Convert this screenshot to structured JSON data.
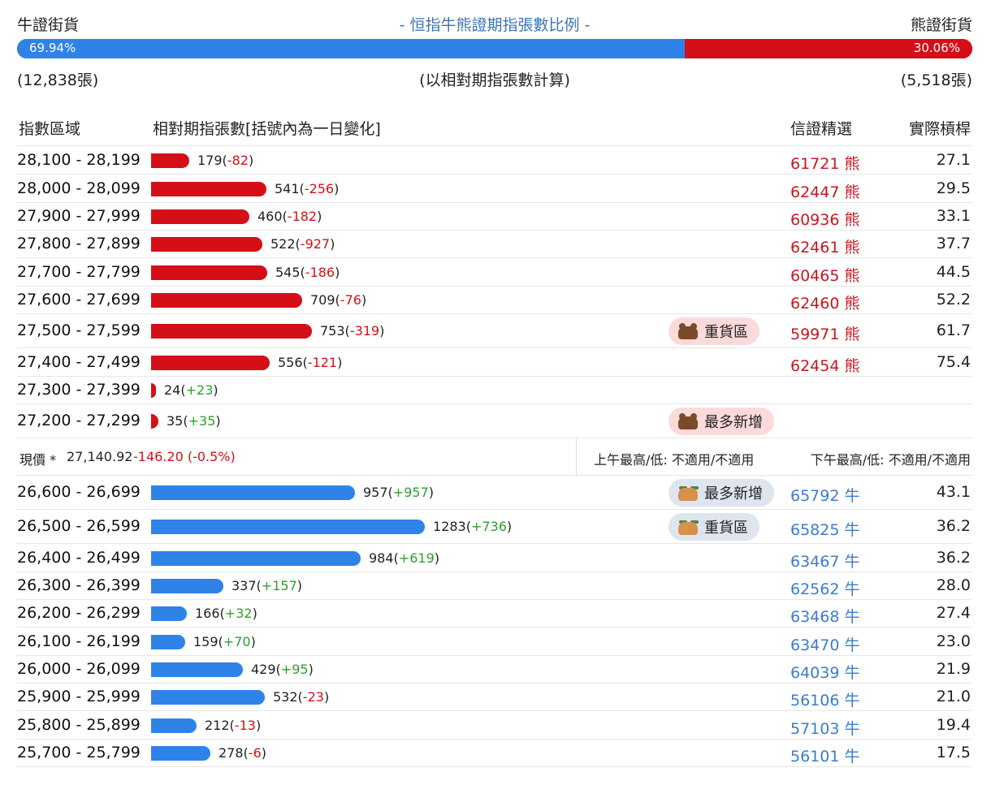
{
  "header": {
    "bull_label": "牛證街貨",
    "title": "- 恒指牛熊證期指張數比例 -",
    "bear_label": "熊證街貨",
    "bull_pct": "69.94%",
    "bear_pct": "30.06%",
    "bull_share": 69.94,
    "bull_count": "(12,838張)",
    "note": "(以相對期指張數計算)",
    "bear_count": "(5,518張)"
  },
  "columns": {
    "range": "指數區域",
    "contracts": "相對期指張數[括號內為一日變化]",
    "pick": "信證精選",
    "leverage": "實際槓桿"
  },
  "price_row": {
    "label": "現價 *",
    "value": "27,140.92",
    "change": "-146.20 (-0.5%)",
    "am": "上午最高/低: 不適用/不適用",
    "pm": "下午最高/低: 不適用/不適用"
  },
  "colors": {
    "bear": "#d50f17",
    "bull": "#2f82e8",
    "positive": "#2ca02c"
  },
  "chart_data": {
    "type": "bar",
    "bear_rows": [
      {
        "range": "28,100 - 28,199",
        "value": 179,
        "value_text": "179",
        "change": "-82",
        "pick": "61721 熊",
        "leverage": "27.1"
      },
      {
        "range": "28,000 - 28,099",
        "value": 541,
        "value_text": "541",
        "change": "-256",
        "pick": "62447 熊",
        "leverage": "29.5"
      },
      {
        "range": "27,900 - 27,999",
        "value": 460,
        "value_text": "460",
        "change": "-182",
        "pick": "60936 熊",
        "leverage": "33.1"
      },
      {
        "range": "27,800 - 27,899",
        "value": 522,
        "value_text": "522",
        "change": "-927",
        "pick": "62461 熊",
        "leverage": "37.7"
      },
      {
        "range": "27,700 - 27,799",
        "value": 545,
        "value_text": "545",
        "change": "-186",
        "pick": "60465 熊",
        "leverage": "44.5"
      },
      {
        "range": "27,600 - 27,699",
        "value": 709,
        "value_text": "709",
        "change": "-76",
        "pick": "62460 熊",
        "leverage": "52.2"
      },
      {
        "range": "27,500 - 27,599",
        "value": 753,
        "value_text": "753",
        "change": "-319",
        "pick": "59971 熊",
        "leverage": "61.7",
        "badge": "重貨區"
      },
      {
        "range": "27,400 - 27,499",
        "value": 556,
        "value_text": "556",
        "change": "-121",
        "pick": "62454 熊",
        "leverage": "75.4"
      },
      {
        "range": "27,300 - 27,399",
        "value": 24,
        "value_text": "24",
        "change": "+23",
        "pick": "",
        "leverage": ""
      },
      {
        "range": "27,200 - 27,299",
        "value": 35,
        "value_text": "35",
        "change": "+35",
        "pick": "",
        "leverage": "",
        "badge": "最多新增"
      }
    ],
    "bull_rows": [
      {
        "range": "26,600 - 26,699",
        "value": 957,
        "value_text": "957",
        "change": "+957",
        "pick": "65792 牛",
        "leverage": "43.1",
        "badge": "最多新增"
      },
      {
        "range": "26,500 - 26,599",
        "value": 1283,
        "value_text": "1283",
        "change": "+736",
        "pick": "65825 牛",
        "leverage": "36.2",
        "badge": "重貨區"
      },
      {
        "range": "26,400 - 26,499",
        "value": 984,
        "value_text": "984",
        "change": "+619",
        "pick": "63467 牛",
        "leverage": "36.2"
      },
      {
        "range": "26,300 - 26,399",
        "value": 337,
        "value_text": "337",
        "change": "+157",
        "pick": "62562 牛",
        "leverage": "28.0"
      },
      {
        "range": "26,200 - 26,299",
        "value": 166,
        "value_text": "166",
        "change": "+32",
        "pick": "63468 牛",
        "leverage": "27.4"
      },
      {
        "range": "26,100 - 26,199",
        "value": 159,
        "value_text": "159",
        "change": "+70",
        "pick": "63470 牛",
        "leverage": "23.0"
      },
      {
        "range": "26,000 - 26,099",
        "value": 429,
        "value_text": "429",
        "change": "+95",
        "pick": "64039 牛",
        "leverage": "21.9"
      },
      {
        "range": "25,900 - 25,999",
        "value": 532,
        "value_text": "532",
        "change": "-23",
        "pick": "56106 牛",
        "leverage": "21.0"
      },
      {
        "range": "25,800 - 25,899",
        "value": 212,
        "value_text": "212",
        "change": "-13",
        "pick": "57103 牛",
        "leverage": "19.4"
      },
      {
        "range": "25,700 - 25,799",
        "value": 278,
        "value_text": "278",
        "change": "-6",
        "pick": "56101 牛",
        "leverage": "17.5"
      }
    ]
  }
}
